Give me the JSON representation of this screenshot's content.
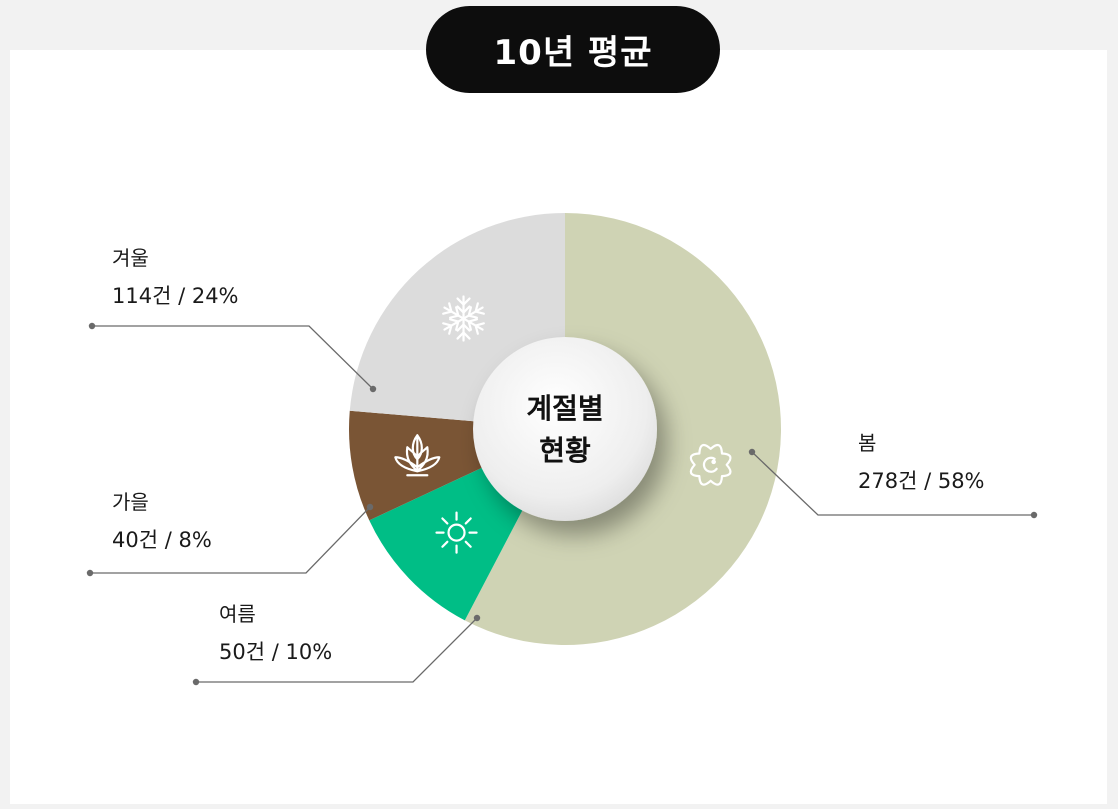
{
  "title": "10년 평균",
  "chart_data": {
    "type": "pie",
    "center_label": [
      "계절별",
      "현황"
    ],
    "slices": [
      {
        "name": "봄",
        "count_label": "278건 / 58%",
        "count": 278,
        "percent": 58,
        "color": "#cfd3b4",
        "icon": "flower-icon"
      },
      {
        "name": "여름",
        "count_label": "50건 / 10%",
        "count": 50,
        "percent": 10,
        "color": "#00be86",
        "icon": "sun-icon"
      },
      {
        "name": "가을",
        "count_label": "40건 / 8%",
        "count": 40,
        "percent": 8,
        "color": "#7a5535",
        "icon": "leaf-icon"
      },
      {
        "name": "겨울",
        "count_label": "114건 / 24%",
        "count": 114,
        "percent": 24,
        "color": "#dcdcdc",
        "icon": "snowflake-icon"
      }
    ]
  }
}
